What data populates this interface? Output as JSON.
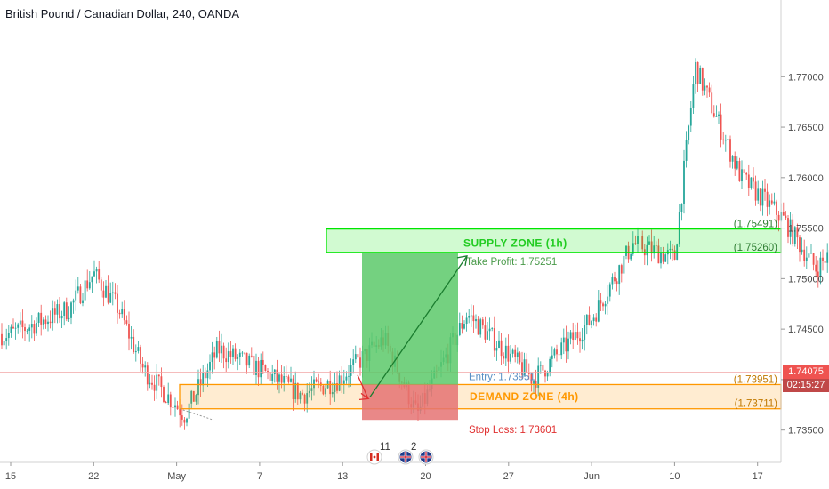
{
  "header": {
    "title": "British Pound / Canadian Dollar, 240, OANDA"
  },
  "colors": {
    "up": "#26a69a",
    "down": "#ef5350",
    "supply_zone": "#00e600",
    "demand_zone": "#ff9800",
    "target_fill": "#5cc96a",
    "stop_fill": "#e57373",
    "price_tag": "#ef5350",
    "timer_tag": "#c04848",
    "entry_text": "#5a8fc4",
    "stop_text": "#e03030",
    "tp_text": "#4a9a4a",
    "zone_value_text": "#2e7d32",
    "demand_value_text": "#c07800"
  },
  "chart_data": {
    "type": "candlestick",
    "title": "British Pound / Canadian Dollar, 240, OANDA",
    "x_tick_labels": [
      "15",
      "22",
      "May",
      "7",
      "13",
      "20",
      "27",
      "Jun",
      "10",
      "17"
    ],
    "y_tick_labels": [
      "1.77000",
      "1.76500",
      "1.76000",
      "1.75500",
      "1.75000",
      "1.74500",
      "1.74000",
      "1.73500"
    ],
    "y_ticks": [
      1.77,
      1.765,
      1.76,
      1.755,
      1.75,
      1.745,
      1.74,
      1.735
    ],
    "ylim": [
      1.7318,
      1.7776
    ],
    "series_anchors": [
      {
        "x": 0.0,
        "price": 1.7445
      },
      {
        "x": 0.7,
        "price": 1.747
      },
      {
        "x": 1.0,
        "price": 1.7505
      },
      {
        "x": 1.3,
        "price": 1.747
      },
      {
        "x": 1.6,
        "price": 1.741
      },
      {
        "x": 2.1,
        "price": 1.7365
      },
      {
        "x": 2.5,
        "price": 1.743
      },
      {
        "x": 3.0,
        "price": 1.741
      },
      {
        "x": 3.5,
        "price": 1.7385
      },
      {
        "x": 3.95,
        "price": 1.74
      },
      {
        "x": 4.5,
        "price": 1.744
      },
      {
        "x": 4.9,
        "price": 1.7365
      },
      {
        "x": 5.5,
        "price": 1.7465
      },
      {
        "x": 6.0,
        "price": 1.7425
      },
      {
        "x": 6.3,
        "price": 1.74
      },
      {
        "x": 7.0,
        "price": 1.746
      },
      {
        "x": 7.5,
        "price": 1.7535
      },
      {
        "x": 8.0,
        "price": 1.752
      },
      {
        "x": 8.25,
        "price": 1.771
      },
      {
        "x": 8.5,
        "price": 1.766
      },
      {
        "x": 8.8,
        "price": 1.76
      },
      {
        "x": 9.3,
        "price": 1.756
      },
      {
        "x": 9.7,
        "price": 1.751
      },
      {
        "x": 10.0,
        "price": 1.7535
      },
      {
        "x": 10.3,
        "price": 1.748
      },
      {
        "x": 10.8,
        "price": 1.746
      },
      {
        "x": 11.1,
        "price": 1.744
      },
      {
        "x": 11.35,
        "price": 1.7415
      }
    ],
    "current_price": {
      "label": "1.74075",
      "value": 1.74075,
      "timer": "02:15:27"
    },
    "zones": [
      {
        "name": "SUPPLY ZONE (1h)",
        "top": 1.75491,
        "bottom": 1.7526,
        "top_label": "(1.75491)",
        "bottom_label": "(1.75260)"
      },
      {
        "name": "DEMAND ZONE (4h)",
        "top": 1.73951,
        "bottom": 1.73711,
        "top_label": "(1.73951)",
        "bottom_label": "(1.73711)"
      }
    ],
    "position": {
      "entry": 1.73951,
      "take_profit": 1.75251,
      "stop_loss": 1.73601,
      "entry_label": "Entry: 1.73951",
      "take_profit_label": "Take Profit: 1.75251",
      "stop_loss_label": "Stop Loss: 1.73601"
    },
    "event_markers": [
      {
        "flag": "canada-flag-icon",
        "count": "11"
      },
      {
        "flag": "uk-flag-icon",
        "count": "2"
      },
      {
        "flag": "uk-flag-icon",
        "count": ""
      }
    ],
    "grid": false
  }
}
